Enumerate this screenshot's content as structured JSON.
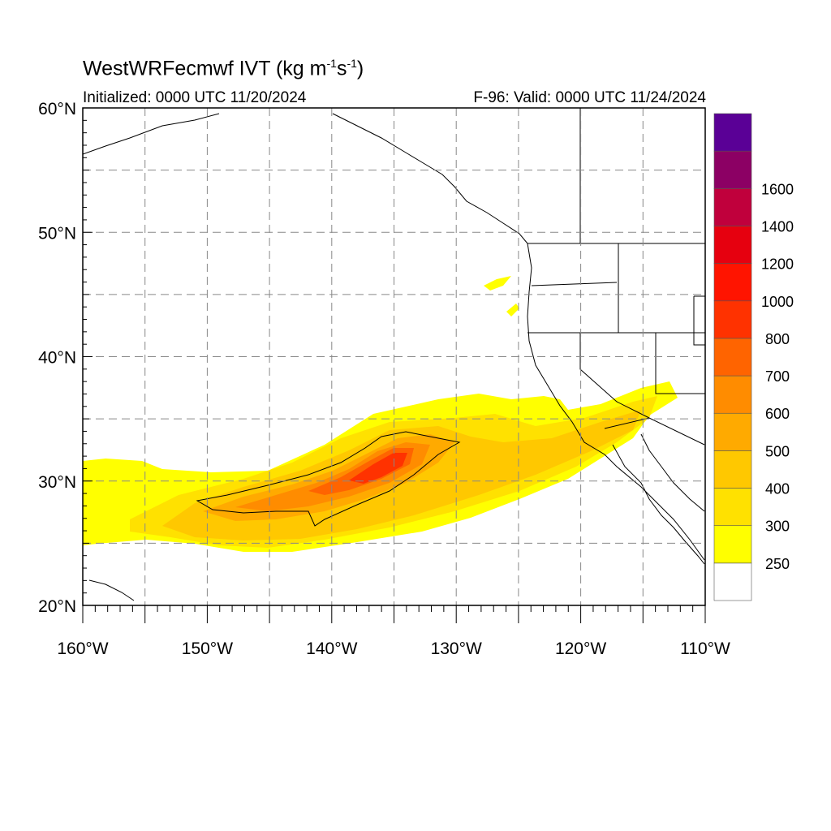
{
  "title": {
    "main": "WestWRFecmwf IVT (kg m",
    "sup1": "-1",
    "mid": "s",
    "sup2": "-1",
    "close": ")"
  },
  "subtitle": {
    "initialized": "Initialized: 0000 UTC 11/20/2024",
    "valid": "F-96: Valid: 0000 UTC 11/24/2024"
  },
  "map": {
    "lon_range": [
      -160,
      -110
    ],
    "lat_range": [
      20,
      60
    ],
    "lat_ticks": [
      {
        "value": 60,
        "label": "60°N"
      },
      {
        "value": 50,
        "label": "50°N"
      },
      {
        "value": 40,
        "label": "40°N"
      },
      {
        "value": 30,
        "label": "30°N"
      },
      {
        "value": 20,
        "label": "20°N"
      }
    ],
    "lon_ticks": [
      {
        "value": -160,
        "label": "160°W"
      },
      {
        "value": -150,
        "label": "150°W"
      },
      {
        "value": -140,
        "label": "140°W"
      },
      {
        "value": -130,
        "label": "130°W"
      },
      {
        "value": -120,
        "label": "120°W"
      },
      {
        "value": -110,
        "label": "110°W"
      }
    ],
    "grid": "dashed every 5°"
  },
  "colorbar": {
    "levels": [
      {
        "label": "250",
        "color": "#ffffff"
      },
      {
        "label": "300",
        "color": "#ffff00"
      },
      {
        "label": "400",
        "color": "#ffe100"
      },
      {
        "label": "500",
        "color": "#ffc800"
      },
      {
        "label": "600",
        "color": "#ffaa00"
      },
      {
        "label": "700",
        "color": "#ff8c00"
      },
      {
        "label": "800",
        "color": "#ff6400"
      },
      {
        "label": "1000",
        "color": "#ff3200"
      },
      {
        "label": "1200",
        "color": "#ff1400"
      },
      {
        "label": "1400",
        "color": "#e6000f"
      },
      {
        "label": "1600",
        "color": "#c0003c"
      },
      {
        "label": "",
        "color": "#8c0064"
      },
      {
        "label": "",
        "color": "#5a0096"
      }
    ]
  },
  "colors": {
    "land_outline": "#000000",
    "grid": "#888888"
  }
}
